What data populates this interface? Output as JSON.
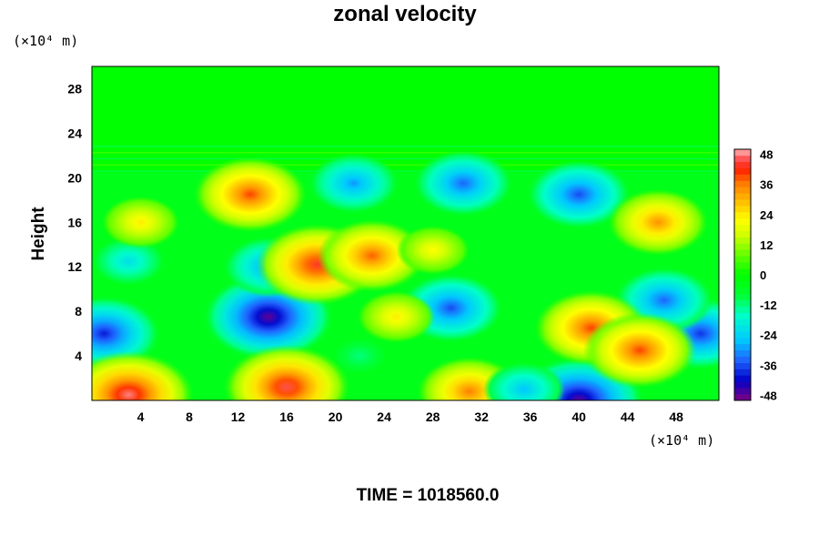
{
  "chart_data": {
    "type": "heatmap",
    "title": "zonal velocity",
    "ylabel": "Height",
    "x_unit": "(×10⁴ m)",
    "y_unit": "(×10⁴ m)",
    "xlim": [
      0,
      51.5
    ],
    "ylim": [
      0,
      30
    ],
    "x_ticks": [
      4,
      8,
      12,
      16,
      20,
      24,
      28,
      32,
      36,
      40,
      44,
      48
    ],
    "y_ticks": [
      4,
      8,
      12,
      16,
      20,
      24,
      28
    ],
    "colorbar": {
      "min": -50,
      "max": 50,
      "tick_values": [
        48,
        36,
        24,
        12,
        0,
        -12,
        -24,
        -36,
        -48
      ],
      "color_stops": [
        [
          -50,
          "#800080"
        ],
        [
          -42,
          "#0000c8"
        ],
        [
          -34,
          "#1e64ff"
        ],
        [
          -26,
          "#00c8ff"
        ],
        [
          -16,
          "#00ffc8"
        ],
        [
          -8,
          "#00ff32"
        ],
        [
          0,
          "#00ff00"
        ],
        [
          8,
          "#64ff00"
        ],
        [
          16,
          "#d2ff00"
        ],
        [
          22,
          "#ffff00"
        ],
        [
          28,
          "#ffc800"
        ],
        [
          36,
          "#ff8000"
        ],
        [
          42,
          "#ff2000"
        ],
        [
          46,
          "#ff5050"
        ],
        [
          50,
          "#ffb4b4"
        ]
      ]
    },
    "features": [
      {
        "x": 14.5,
        "y": 7.5,
        "value": -48
      },
      {
        "x": 40.0,
        "y": 0.0,
        "value": -48
      },
      {
        "x": 30.5,
        "y": 19.5,
        "value": -34
      },
      {
        "x": 21.5,
        "y": 19.5,
        "value": -30
      },
      {
        "x": 3.0,
        "y": 12.5,
        "value": -22
      },
      {
        "x": 1.0,
        "y": 6.0,
        "value": -40
      },
      {
        "x": 50.0,
        "y": 6.0,
        "value": -38
      },
      {
        "x": 47.0,
        "y": 9.0,
        "value": -34
      },
      {
        "x": 40.0,
        "y": 18.5,
        "value": -36
      },
      {
        "x": 29.5,
        "y": 8.3,
        "value": -36
      },
      {
        "x": 14.5,
        "y": 12.0,
        "value": -30
      },
      {
        "x": 41.0,
        "y": 6.5,
        "value": 40
      },
      {
        "x": 45.0,
        "y": 4.5,
        "value": 40
      },
      {
        "x": 13.0,
        "y": 18.5,
        "value": 40
      },
      {
        "x": 16.0,
        "y": 1.2,
        "value": 46
      },
      {
        "x": 3.0,
        "y": 0.5,
        "value": 48
      },
      {
        "x": 18.5,
        "y": 12.2,
        "value": 44
      },
      {
        "x": 23.0,
        "y": 13.0,
        "value": 38
      },
      {
        "x": 46.5,
        "y": 16.0,
        "value": 34
      },
      {
        "x": 31.0,
        "y": 0.8,
        "value": 36
      },
      {
        "x": 25.0,
        "y": 7.5,
        "value": 24
      },
      {
        "x": 4.0,
        "y": 16.0,
        "value": 24
      },
      {
        "x": 28.0,
        "y": 13.5,
        "value": 22
      },
      {
        "x": 35.5,
        "y": 1.0,
        "value": -26
      },
      {
        "x": 22.0,
        "y": 4.0,
        "value": -12
      }
    ],
    "upper_layer": {
      "from_y": 20.5,
      "value": 0
    }
  },
  "footer": {
    "time_text": "TIME = 1018560.0"
  }
}
